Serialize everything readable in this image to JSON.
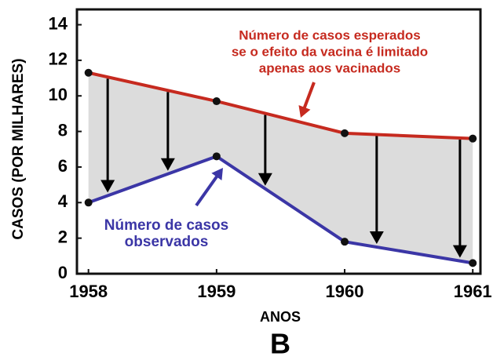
{
  "chart_data": {
    "type": "line",
    "x_label": "ANOS",
    "y_label": "CASOS (POR MILHARES)",
    "panel_label": "B",
    "x": [
      1958,
      1959,
      1960,
      1961
    ],
    "series": [
      {
        "color": "#c62a1f",
        "values": [
          11.3,
          9.7,
          7.9,
          7.6
        ]
      },
      {
        "color": "#3b36a6",
        "values": [
          4.0,
          6.6,
          1.8,
          0.6
        ]
      }
    ],
    "annotations": [
      {
        "color": "#c62a1f",
        "lines": [
          "Número de casos esperados",
          "se o efeito da vacina é limitado",
          "apenas aos vacinados"
        ]
      },
      {
        "color": "#3b36a6",
        "lines": [
          "Número de casos",
          "observados"
        ]
      }
    ],
    "xlim": [
      1957.91,
      1961.06
    ],
    "xticks": [
      1958,
      1959,
      1960,
      1961
    ],
    "ylim": [
      0,
      14.2
    ],
    "yticks": [
      0,
      2,
      4,
      6,
      8,
      10,
      12,
      14
    ]
  }
}
